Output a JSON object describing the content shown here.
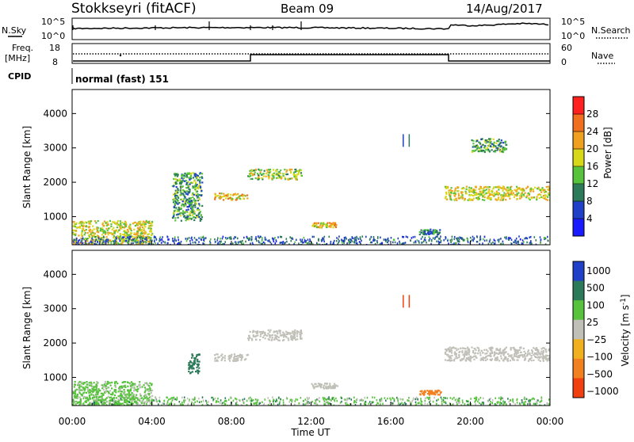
{
  "header": {
    "station": "Stokkseyri (fitACF)",
    "beam": "Beam 09",
    "date": "14/Aug/2017"
  },
  "nsky": {
    "left_label": "N.Sky",
    "left_ticks": [
      "10^5",
      "10^0"
    ],
    "right_label": "N.Search",
    "right_ticks": [
      "10^5",
      "10^0"
    ]
  },
  "freq": {
    "left_label_1": "Freq.",
    "left_label_2": "[MHz]",
    "left_ticks": [
      "18",
      "8"
    ],
    "right_label": "Nave",
    "right_ticks": [
      "60",
      "0"
    ]
  },
  "cpid": {
    "label": "CPID",
    "mode": "normal (fast) 151"
  },
  "power_panel": {
    "ylabel": "Slant Range [km]",
    "yticks": [
      "1000",
      "2000",
      "3000",
      "4000"
    ],
    "colorbar_label": "Power [dB]",
    "colorbar_ticks": [
      "4",
      "8",
      "12",
      "16",
      "20",
      "24",
      "28"
    ],
    "colors": [
      "#1a1aff",
      "#2040c8",
      "#2c7a5a",
      "#57c23c",
      "#d8d81a",
      "#f0a020",
      "#f07020",
      "#ff2020"
    ]
  },
  "velocity_panel": {
    "ylabel": "Slant Range [km]",
    "yticks": [
      "1000",
      "2000",
      "3000",
      "4000"
    ],
    "colorbar_label": "Velocity [m s",
    "colorbar_label_sup": "-1",
    "colorbar_label_end": "]",
    "colorbar_ticks": [
      "1000",
      "500",
      "100",
      "25",
      "−25",
      "−100",
      "−500",
      "−1000"
    ],
    "colors": [
      "#2040c8",
      "#2c7a5a",
      "#57c23c",
      "#c0c0b8",
      "#f0b020",
      "#f08020",
      "#f04010"
    ]
  },
  "xaxis": {
    "label": "Time UT",
    "ticks": [
      "00:00",
      "04:00",
      "08:00",
      "12:00",
      "16:00",
      "20:00",
      "00:00"
    ]
  },
  "chart_data": [
    {
      "type": "heatmap",
      "title": "Power",
      "xlabel": "Time UT",
      "ylabel": "Slant Range [km]",
      "xlim_hours": [
        0,
        24
      ],
      "ylim_km": [
        180,
        4700
      ],
      "colorbar": {
        "label": "Power [dB]",
        "range": [
          0,
          30
        ],
        "ticks": [
          4,
          8,
          12,
          16,
          20,
          24,
          28
        ]
      },
      "echo_regions": [
        {
          "t_start": 0.0,
          "t_end": 4.0,
          "range_start": 200,
          "range_end": 900,
          "power_db": 18
        },
        {
          "t_start": 5.0,
          "t_end": 6.5,
          "range_start": 900,
          "range_end": 2300,
          "power_db": 12
        },
        {
          "t_start": 7.1,
          "t_end": 8.8,
          "range_start": 1500,
          "range_end": 1700,
          "power_db": 20
        },
        {
          "t_start": 8.8,
          "t_end": 11.5,
          "range_start": 2100,
          "range_end": 2400,
          "power_db": 16
        },
        {
          "t_start": 12.0,
          "t_end": 13.3,
          "range_start": 700,
          "range_end": 850,
          "power_db": 20
        },
        {
          "t_start": 17.4,
          "t_end": 18.5,
          "range_start": 500,
          "range_end": 650,
          "power_db": 10
        },
        {
          "t_start": 18.7,
          "t_end": 24.0,
          "range_start": 1500,
          "range_end": 1900,
          "power_db": 18
        },
        {
          "t_start": 20.0,
          "t_end": 21.8,
          "range_start": 2900,
          "range_end": 3300,
          "power_db": 12
        }
      ]
    },
    {
      "type": "heatmap",
      "title": "Velocity",
      "xlabel": "Time UT",
      "ylabel": "Slant Range [km]",
      "xlim_hours": [
        0,
        24
      ],
      "ylim_km": [
        180,
        4700
      ],
      "colorbar": {
        "label": "Velocity [m s^-1]",
        "ticks": [
          1000,
          500,
          100,
          25,
          -25,
          -100,
          -500,
          -1000
        ]
      },
      "echo_regions": [
        {
          "t_start": 0.0,
          "t_end": 4.0,
          "range_start": 200,
          "range_end": 900,
          "velocity": 40
        },
        {
          "t_start": 5.8,
          "t_end": 6.4,
          "range_start": 1100,
          "range_end": 1700,
          "velocity": 300
        },
        {
          "t_start": 7.1,
          "t_end": 8.8,
          "range_start": 1500,
          "range_end": 1700,
          "velocity": 0
        },
        {
          "t_start": 8.8,
          "t_end": 11.5,
          "range_start": 2100,
          "range_end": 2400,
          "velocity": 0
        },
        {
          "t_start": 12.0,
          "t_end": 13.3,
          "range_start": 700,
          "range_end": 850,
          "velocity": 0
        },
        {
          "t_start": 17.4,
          "t_end": 18.5,
          "range_start": 500,
          "range_end": 650,
          "velocity": -150
        },
        {
          "t_start": 18.7,
          "t_end": 24.0,
          "range_start": 1500,
          "range_end": 1900,
          "velocity": 0
        }
      ]
    }
  ]
}
